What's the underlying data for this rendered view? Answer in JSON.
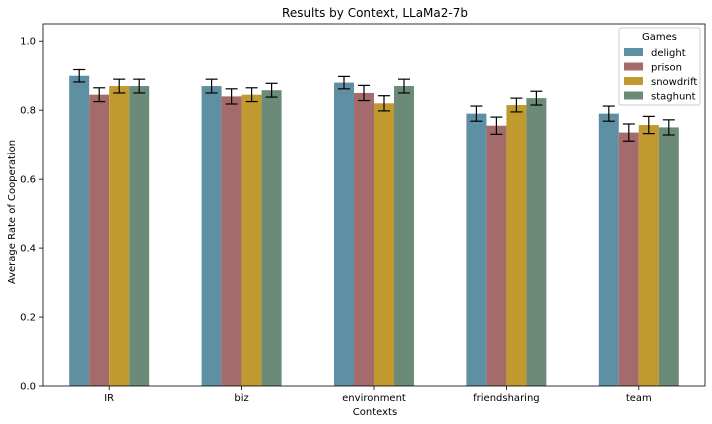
{
  "chart_data": {
    "type": "bar",
    "title": "Results by Context, LLaMa2-7b",
    "xlabel": "Contexts",
    "ylabel": "Average Rate of Cooperation",
    "ylim": [
      0,
      1.05
    ],
    "yticks": [
      "0.0",
      "0.2",
      "0.4",
      "0.6",
      "0.8",
      "1.0"
    ],
    "ytick_values": [
      0,
      0.2,
      0.4,
      0.6,
      0.8,
      1.0
    ],
    "categories": [
      "IR",
      "biz",
      "environment",
      "friendsharing",
      "team"
    ],
    "legend_title": "Games",
    "legend_position": "top-right",
    "error_bars": true,
    "series": [
      {
        "name": "delight",
        "color": "#5f8fa3",
        "values": [
          0.9,
          0.87,
          0.88,
          0.79,
          0.79
        ],
        "errors": [
          0.018,
          0.02,
          0.018,
          0.022,
          0.022
        ]
      },
      {
        "name": "prison",
        "color": "#a56b6b",
        "values": [
          0.845,
          0.84,
          0.85,
          0.755,
          0.735
        ],
        "errors": [
          0.02,
          0.022,
          0.022,
          0.025,
          0.025
        ]
      },
      {
        "name": "snowdrift",
        "color": "#c09a2e",
        "values": [
          0.87,
          0.845,
          0.82,
          0.815,
          0.757
        ],
        "errors": [
          0.02,
          0.02,
          0.022,
          0.02,
          0.025
        ]
      },
      {
        "name": "staghunt",
        "color": "#6b8b78",
        "values": [
          0.87,
          0.858,
          0.87,
          0.835,
          0.75
        ],
        "errors": [
          0.02,
          0.02,
          0.02,
          0.02,
          0.022
        ]
      }
    ]
  }
}
